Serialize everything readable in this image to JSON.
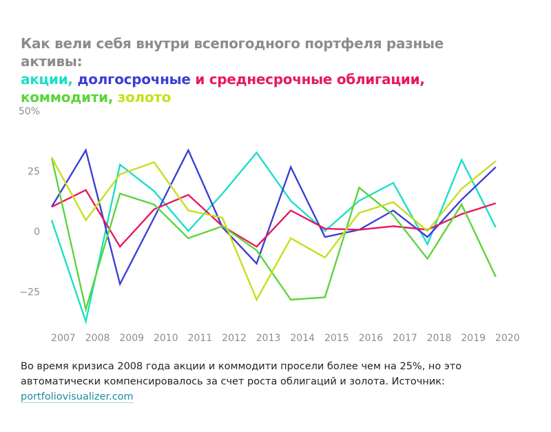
{
  "chart_data": {
    "type": "line",
    "title": "Как вели себя внутри всепогодного портфеля разные активы:",
    "categories": [
      "2007",
      "2008",
      "2009",
      "2010",
      "2011",
      "2012",
      "2013",
      "2014",
      "2015",
      "2016",
      "2017",
      "2018",
      "2019",
      "2020"
    ],
    "series": [
      {
        "name": "акции,",
        "color": "#19dfc6",
        "values": [
          5,
          -37,
          28,
          17,
          0.5,
          16,
          33,
          13,
          0.5,
          13,
          20.5,
          -5,
          30,
          2
        ]
      },
      {
        "name": "долгосрочные",
        "color": "#3b3fd4",
        "values": [
          10.5,
          34,
          -21.5,
          6,
          34,
          2,
          -13,
          27,
          -2,
          1,
          9,
          -2,
          13.5,
          27
        ]
      },
      {
        "name": "и среднесрочные облигации,",
        "color": "#e8185f",
        "values": [
          10.5,
          17.5,
          -6,
          9.5,
          15.5,
          2.5,
          -6,
          9,
          1.5,
          1,
          2.5,
          1,
          7.5,
          12
        ]
      },
      {
        "name": "коммодити,",
        "color": "#5cd43a",
        "values": [
          31,
          -32,
          16,
          11.5,
          -2.5,
          2.5,
          -7.5,
          -28,
          -27,
          18.5,
          7,
          -11,
          11.5,
          -18.5
        ]
      },
      {
        "name": "золото",
        "color": "#c6df1a",
        "values": [
          31,
          5,
          24,
          29,
          9,
          6,
          -28,
          -2.5,
          -10.5,
          8,
          12.5,
          0.5,
          18,
          29.5
        ]
      }
    ],
    "ylim": [
      -40,
      50
    ],
    "yticks": [
      {
        "value": 50,
        "label": "50%"
      },
      25,
      0,
      {
        "value": -25,
        "label": "−25"
      }
    ],
    "grid": false,
    "note": "Во время кризиса 2008 года акции и коммодити просели более чем на 25%, но это автоматически компенсировалось за счет роста облигаций и золота. Источник:",
    "source": "portfoliovisualizer.com"
  }
}
